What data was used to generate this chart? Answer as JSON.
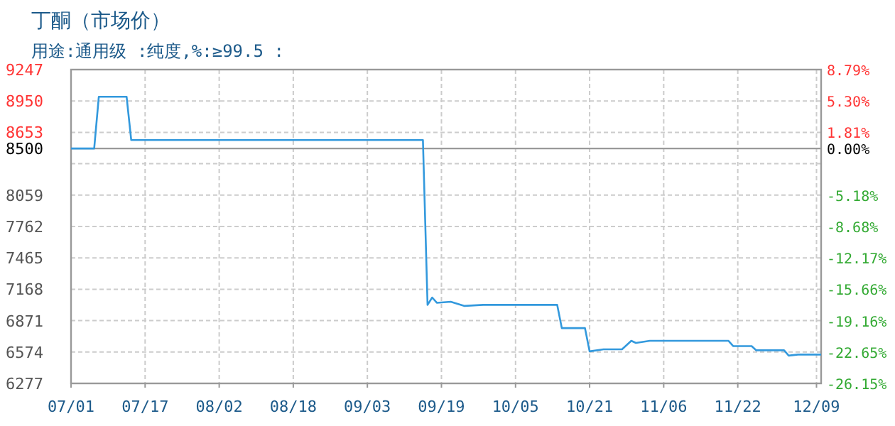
{
  "chart_data": {
    "type": "line",
    "title": "丁酮（市场价）",
    "subtitle": "用途:通用级 :纯度,%:≥99.5 :",
    "x": [
      "--07-01",
      "--07-06",
      "--07-07",
      "--07-13",
      "--07-14",
      "--09-15",
      "--09-16",
      "--09-17",
      "--09-18",
      "--09-21",
      "--09-24",
      "--09-28",
      "--10-14",
      "--10-15",
      "--10-20",
      "--10-21",
      "--10-24",
      "--10-28",
      "--10-30",
      "--10-31",
      "--11-03",
      "--11-20",
      "--11-21",
      "--11-25",
      "--11-26",
      "--12-02",
      "--12-03",
      "--12-05",
      "--12-10"
    ],
    "series": [
      {
        "color": "#3399dd",
        "values": [
          8500,
          8500,
          8990,
          8990,
          8580,
          8580,
          7020,
          7090,
          7040,
          7050,
          7010,
          7020,
          7020,
          6800,
          6800,
          6580,
          6600,
          6600,
          6680,
          6660,
          6680,
          6680,
          6630,
          6630,
          6590,
          6590,
          6540,
          6550,
          6550
        ]
      }
    ],
    "xlim": [
      "--07-01",
      "--12-10"
    ],
    "xticks": [
      {
        "value": "--07-01",
        "label": "07/01"
      },
      {
        "value": "--07-17",
        "label": "07/17"
      },
      {
        "value": "--08-02",
        "label": "08/02"
      },
      {
        "value": "--08-18",
        "label": "08/18"
      },
      {
        "value": "--09-03",
        "label": "09/03"
      },
      {
        "value": "--09-19",
        "label": "09/19"
      },
      {
        "value": "--10-05",
        "label": "10/05"
      },
      {
        "value": "--10-21",
        "label": "10/21"
      },
      {
        "value": "--11-06",
        "label": "11/06"
      },
      {
        "value": "--11-22",
        "label": "11/22"
      },
      {
        "value": "--12-09",
        "label": "12/09"
      }
    ],
    "ylim": [
      6277,
      9247
    ],
    "yticks": [
      6277,
      6574,
      6871,
      7168,
      7465,
      7762,
      8059,
      {
        "value": 8356,
        "label": null
      },
      8500,
      8653,
      8950,
      9247
    ],
    "y2lim": [
      -26.15,
      8.79
    ],
    "y2ticks": [
      {
        "value": -26.15,
        "label": "-26.15%"
      },
      {
        "value": -22.65,
        "label": "-22.65%"
      },
      {
        "value": -19.16,
        "label": "-19.16%"
      },
      {
        "value": -15.66,
        "label": "-15.66%"
      },
      {
        "value": -12.17,
        "label": "-12.17%"
      },
      {
        "value": -8.68,
        "label": "-8.68%"
      },
      {
        "value": -5.18,
        "label": "-5.18%"
      },
      {
        "value": 0,
        "label": "0.00%"
      },
      {
        "value": 1.81,
        "label": "1.81%"
      },
      {
        "value": 5.3,
        "label": "5.30%"
      },
      {
        "value": 8.79,
        "label": "8.79%"
      }
    ],
    "ref_lines": [
      {
        "axis": "y",
        "value": 8500,
        "color": "#999999"
      }
    ],
    "grid": true,
    "line_style": "solid"
  }
}
